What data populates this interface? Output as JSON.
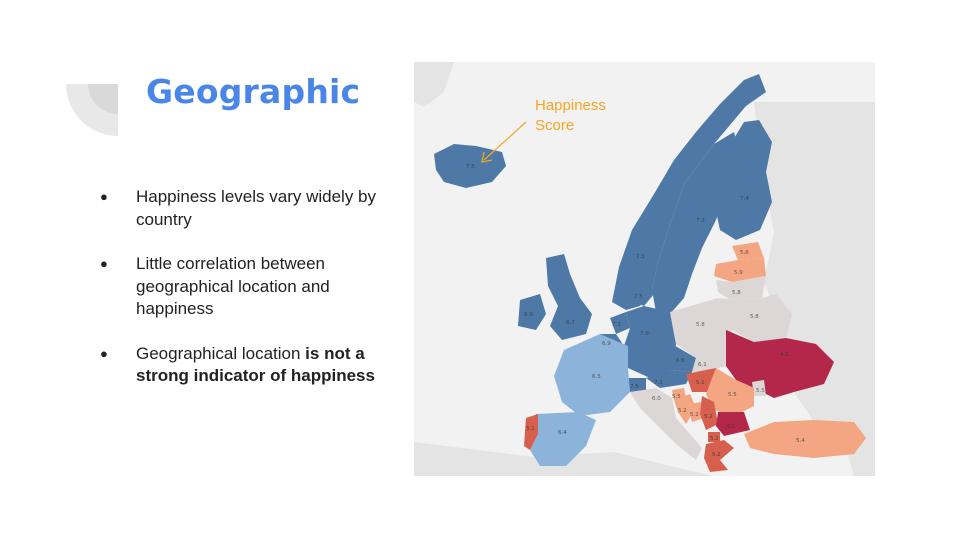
{
  "slide": {
    "title": "Geographic",
    "bullets": [
      {
        "text": "Happiness levels vary widely by country"
      },
      {
        "text": "Little correlation between geographical location and happiness"
      },
      {
        "text_normal": "Geographical location ",
        "text_bold": "is not a strong indicator of happiness"
      }
    ]
  },
  "map": {
    "label_line1": "Happiness",
    "label_line2": "Score",
    "label_color": "#f5a623",
    "colors": {
      "high": "#4e79a7",
      "mid_high": "#8cb3d9",
      "neutral": "#ddd6d6",
      "mid_low": "#f4a582",
      "low": "#d6604d",
      "lowest": "#b2274a"
    },
    "scores": {
      "iceland": "7.5",
      "norway": "7.5",
      "sweden": "7.3",
      "finland": "7.4",
      "latvia": "5.9",
      "lithuania": "5.8",
      "estonia": "5.6",
      "belarus": "5.8",
      "ireland": "6.9",
      "uk": "6.7",
      "denmark": "7.5",
      "netherlands": "7.3",
      "belgium": "6.9",
      "germany": "7.0",
      "poland": "5.8",
      "czechia": "6.6",
      "austria": "7.1",
      "switzerland": "7.5",
      "france": "6.5",
      "spain": "6.4",
      "portugal": "5.1",
      "italy": "6.0",
      "slovakia": "6.1",
      "hungary": "5.1",
      "ukraine": "4.3",
      "romania": "5.5",
      "slovenia": "5.5",
      "croatia": "5.2",
      "bosnia": "5.2",
      "serbia": "5.2",
      "bulgaria": "4.2",
      "macedonia": "5.2",
      "greece": "5.2",
      "turkey": "5.4",
      "moldova": "5.5"
    }
  }
}
